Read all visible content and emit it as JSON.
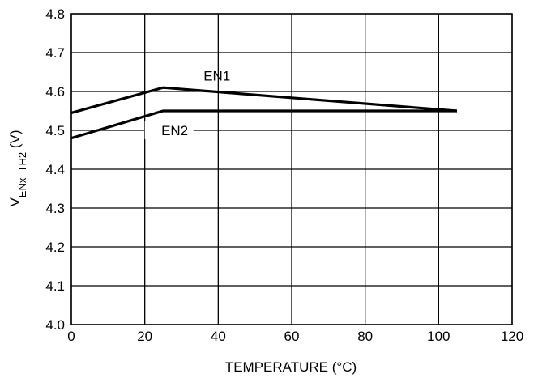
{
  "chart_data": {
    "type": "line",
    "title": "",
    "xlabel": "TEMPERATURE (°C)",
    "ylabel_main": "V",
    "ylabel_sub": "ENx–TH2",
    "ylabel_unit": " (V)",
    "xlim": [
      0,
      120
    ],
    "ylim": [
      4.0,
      4.8
    ],
    "x_ticks": [
      "0",
      "20",
      "40",
      "60",
      "80",
      "100",
      "120"
    ],
    "y_ticks": [
      "4.0",
      "4.1",
      "4.2",
      "4.3",
      "4.4",
      "4.5",
      "4.6",
      "4.7",
      "4.8"
    ],
    "grid": true,
    "legend": "none",
    "series": [
      {
        "name": "EN1",
        "x": [
          0,
          25,
          105
        ],
        "y": [
          4.545,
          4.61,
          4.55
        ]
      },
      {
        "name": "EN2",
        "x": [
          0,
          25,
          105
        ],
        "y": [
          4.48,
          4.55,
          4.55
        ]
      }
    ]
  }
}
